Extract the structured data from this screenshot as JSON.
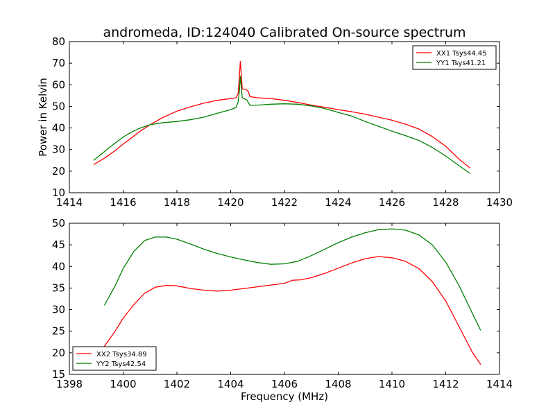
{
  "chart_data": [
    {
      "type": "line",
      "title": "andromeda, ID:124040 Calibrated On-source spectrum",
      "xlabel": "",
      "ylabel": "Power in Kelvin",
      "xlim": [
        1414,
        1430
      ],
      "ylim": [
        10,
        80
      ],
      "xticks": [
        "1414",
        "1416",
        "1418",
        "1420",
        "1422",
        "1424",
        "1426",
        "1428",
        "1430"
      ],
      "yticks": [
        "10",
        "20",
        "30",
        "40",
        "50",
        "60",
        "70",
        "80"
      ],
      "legend_position": "top-right",
      "grid": false,
      "series": [
        {
          "name": "XX1 Tsys44.45",
          "color": "#ff0000",
          "points": [
            [
              1414.9,
              23.0
            ],
            [
              1415.3,
              26.0
            ],
            [
              1415.7,
              29.5
            ],
            [
              1416.0,
              32.5
            ],
            [
              1416.3,
              35.3
            ],
            [
              1416.6,
              38.2
            ],
            [
              1417.0,
              41.5
            ],
            [
              1417.5,
              45.0
            ],
            [
              1418.0,
              47.8
            ],
            [
              1418.5,
              49.8
            ],
            [
              1419.0,
              51.5
            ],
            [
              1419.5,
              52.8
            ],
            [
              1420.0,
              53.6
            ],
            [
              1420.2,
              54.0
            ],
            [
              1420.28,
              56.0
            ],
            [
              1420.33,
              65.0
            ],
            [
              1420.36,
              70.8
            ],
            [
              1420.39,
              66.0
            ],
            [
              1420.43,
              58.0
            ],
            [
              1420.55,
              58.0
            ],
            [
              1420.65,
              57.0
            ],
            [
              1420.72,
              54.5
            ],
            [
              1421.0,
              54.0
            ],
            [
              1421.5,
              53.6
            ],
            [
              1422.0,
              52.8
            ],
            [
              1422.5,
              51.8
            ],
            [
              1423.0,
              50.6
            ],
            [
              1423.5,
              49.6
            ],
            [
              1424.0,
              48.5
            ],
            [
              1424.5,
              47.5
            ],
            [
              1425.0,
              46.4
            ],
            [
              1425.5,
              45.0
            ],
            [
              1426.0,
              43.6
            ],
            [
              1426.5,
              41.8
            ],
            [
              1427.0,
              39.5
            ],
            [
              1427.5,
              36.0
            ],
            [
              1428.0,
              31.5
            ],
            [
              1428.5,
              25.5
            ],
            [
              1428.9,
              21.5
            ]
          ]
        },
        {
          "name": "YY1 Tsys41.21",
          "color": "#008000",
          "points": [
            [
              1414.9,
              25.0
            ],
            [
              1415.3,
              29.0
            ],
            [
              1415.7,
              33.0
            ],
            [
              1416.0,
              35.8
            ],
            [
              1416.3,
              38.0
            ],
            [
              1416.6,
              39.8
            ],
            [
              1417.0,
              41.5
            ],
            [
              1417.5,
              42.5
            ],
            [
              1418.0,
              43.0
            ],
            [
              1418.5,
              43.8
            ],
            [
              1419.0,
              45.0
            ],
            [
              1419.5,
              46.8
            ],
            [
              1420.0,
              48.5
            ],
            [
              1420.2,
              49.5
            ],
            [
              1420.28,
              52.0
            ],
            [
              1420.33,
              58.0
            ],
            [
              1420.36,
              64.0
            ],
            [
              1420.39,
              60.0
            ],
            [
              1420.43,
              54.0
            ],
            [
              1420.6,
              53.0
            ],
            [
              1420.72,
              50.5
            ],
            [
              1421.0,
              50.6
            ],
            [
              1421.5,
              51.0
            ],
            [
              1422.0,
              51.2
            ],
            [
              1422.5,
              51.0
            ],
            [
              1423.0,
              50.2
            ],
            [
              1423.5,
              49.0
            ],
            [
              1424.0,
              47.2
            ],
            [
              1424.5,
              45.5
            ],
            [
              1425.0,
              43.0
            ],
            [
              1425.5,
              40.8
            ],
            [
              1426.0,
              38.5
            ],
            [
              1426.5,
              36.5
            ],
            [
              1427.0,
              34.2
            ],
            [
              1427.5,
              31.0
            ],
            [
              1428.0,
              27.0
            ],
            [
              1428.5,
              22.5
            ],
            [
              1428.9,
              19.0
            ]
          ]
        }
      ]
    },
    {
      "type": "line",
      "title": "",
      "xlabel": "Frequency (MHz)",
      "ylabel": "",
      "xlim": [
        1398,
        1414
      ],
      "ylim": [
        15,
        50
      ],
      "xticks": [
        "1398",
        "1400",
        "1402",
        "1404",
        "1406",
        "1408",
        "1410",
        "1412",
        "1414"
      ],
      "yticks": [
        "15",
        "20",
        "25",
        "30",
        "35",
        "40",
        "45",
        "50"
      ],
      "legend_position": "bottom-left",
      "grid": false,
      "series": [
        {
          "name": "XX2 Tsys34.89",
          "color": "#ff0000",
          "points": [
            [
              1399.3,
              21.5
            ],
            [
              1399.7,
              25.0
            ],
            [
              1400.0,
              28.0
            ],
            [
              1400.4,
              31.2
            ],
            [
              1400.8,
              33.8
            ],
            [
              1401.2,
              35.2
            ],
            [
              1401.6,
              35.6
            ],
            [
              1402.0,
              35.5
            ],
            [
              1402.5,
              34.9
            ],
            [
              1403.0,
              34.5
            ],
            [
              1403.5,
              34.3
            ],
            [
              1404.0,
              34.5
            ],
            [
              1404.5,
              34.9
            ],
            [
              1405.0,
              35.3
            ],
            [
              1405.5,
              35.7
            ],
            [
              1406.0,
              36.1
            ],
            [
              1406.3,
              36.8
            ],
            [
              1406.6,
              36.9
            ],
            [
              1407.0,
              37.4
            ],
            [
              1407.5,
              38.4
            ],
            [
              1408.0,
              39.6
            ],
            [
              1408.5,
              40.8
            ],
            [
              1409.0,
              41.8
            ],
            [
              1409.5,
              42.3
            ],
            [
              1410.0,
              42.0
            ],
            [
              1410.5,
              41.2
            ],
            [
              1411.0,
              39.5
            ],
            [
              1411.5,
              36.5
            ],
            [
              1412.0,
              32.0
            ],
            [
              1412.5,
              26.0
            ],
            [
              1413.0,
              20.0
            ],
            [
              1413.3,
              17.3
            ]
          ]
        },
        {
          "name": "YY2 Tsys42.54",
          "color": "#008000",
          "points": [
            [
              1399.3,
              31.0
            ],
            [
              1399.7,
              35.5
            ],
            [
              1400.0,
              39.5
            ],
            [
              1400.4,
              43.5
            ],
            [
              1400.8,
              46.0
            ],
            [
              1401.2,
              46.8
            ],
            [
              1401.6,
              46.8
            ],
            [
              1402.0,
              46.3
            ],
            [
              1402.5,
              45.2
            ],
            [
              1403.0,
              44.0
            ],
            [
              1403.5,
              43.0
            ],
            [
              1404.0,
              42.2
            ],
            [
              1404.5,
              41.5
            ],
            [
              1405.0,
              40.9
            ],
            [
              1405.5,
              40.5
            ],
            [
              1406.0,
              40.6
            ],
            [
              1406.5,
              41.2
            ],
            [
              1407.0,
              42.5
            ],
            [
              1407.5,
              44.0
            ],
            [
              1408.0,
              45.5
            ],
            [
              1408.5,
              46.8
            ],
            [
              1409.0,
              47.8
            ],
            [
              1409.5,
              48.5
            ],
            [
              1410.0,
              48.7
            ],
            [
              1410.5,
              48.4
            ],
            [
              1411.0,
              47.3
            ],
            [
              1411.5,
              45.0
            ],
            [
              1412.0,
              41.0
            ],
            [
              1412.5,
              35.5
            ],
            [
              1413.0,
              29.0
            ],
            [
              1413.3,
              25.2
            ]
          ]
        }
      ]
    }
  ]
}
